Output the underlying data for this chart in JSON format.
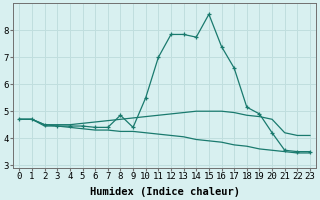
{
  "x_values": [
    0,
    1,
    2,
    3,
    4,
    5,
    6,
    7,
    8,
    9,
    10,
    11,
    12,
    13,
    14,
    15,
    16,
    17,
    18,
    19,
    20,
    21,
    22,
    23
  ],
  "line1": [
    4.7,
    4.7,
    4.5,
    4.45,
    4.45,
    4.45,
    4.4,
    4.4,
    4.85,
    4.4,
    5.5,
    7.0,
    7.85,
    7.85,
    7.75,
    8.6,
    7.4,
    6.6,
    5.15,
    4.9,
    4.2,
    3.55,
    3.5,
    3.5
  ],
  "line2": [
    4.7,
    4.7,
    4.5,
    4.5,
    4.5,
    4.55,
    4.6,
    4.65,
    4.7,
    4.75,
    4.8,
    4.85,
    4.9,
    4.95,
    5.0,
    5.0,
    5.0,
    4.95,
    4.85,
    4.8,
    4.7,
    4.2,
    4.1,
    4.1
  ],
  "line3": [
    4.7,
    4.7,
    4.45,
    4.45,
    4.4,
    4.35,
    4.3,
    4.3,
    4.25,
    4.25,
    4.2,
    4.15,
    4.1,
    4.05,
    3.95,
    3.9,
    3.85,
    3.75,
    3.7,
    3.6,
    3.55,
    3.5,
    3.45,
    3.45
  ],
  "color": "#1a7a6e",
  "bg_color": "#d8f0f0",
  "grid_color": "#c0dede",
  "xlabel": "Humidex (Indice chaleur)",
  "xlim": [
    -0.5,
    23.5
  ],
  "ylim": [
    2.9,
    9.0
  ],
  "yticks": [
    3,
    4,
    5,
    6,
    7,
    8
  ],
  "xticks": [
    0,
    1,
    2,
    3,
    4,
    5,
    6,
    7,
    8,
    9,
    10,
    11,
    12,
    13,
    14,
    15,
    16,
    17,
    18,
    19,
    20,
    21,
    22,
    23
  ],
  "tick_fontsize": 6.5,
  "xlabel_fontsize": 7.5
}
